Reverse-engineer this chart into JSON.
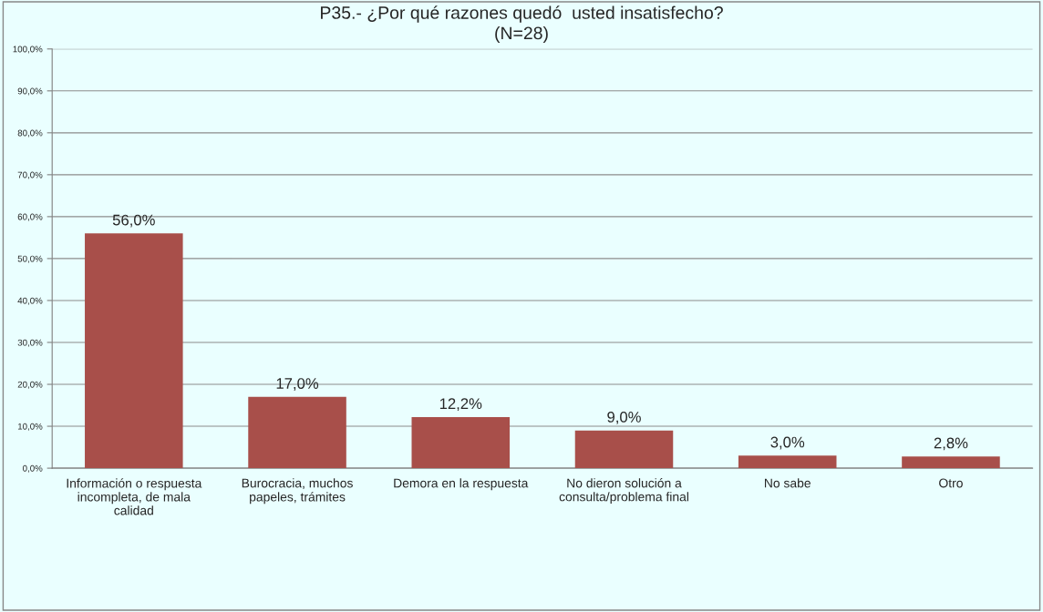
{
  "chart_data": {
    "type": "bar",
    "title": "P35.- ¿Por qué razones quedó  usted insatisfecho?",
    "subtitle": "(N=28)",
    "categories": [
      "Información o respuesta incompleta, de mala calidad",
      "Burocracia, muchos papeles, trámites",
      "Demora en la respuesta",
      "No dieron solución a consulta/problema final",
      "No sabe",
      "Otro"
    ],
    "values": [
      56.0,
      17.0,
      12.2,
      9.0,
      3.0,
      2.8
    ],
    "value_labels": [
      "56,0%",
      "17,0%",
      "12,2%",
      "9,0%",
      "3,0%",
      "2,8%"
    ],
    "color": "#a84f4a",
    "ylim": [
      0,
      100
    ],
    "yticks": [
      {
        "value": 0,
        "label": "0,0%"
      },
      {
        "value": 10,
        "label": "10,0%"
      },
      {
        "value": 20,
        "label": "20,0%"
      },
      {
        "value": 30,
        "label": "30,0%"
      },
      {
        "value": 40,
        "label": "40,0%"
      },
      {
        "value": 50,
        "label": "50,0%"
      },
      {
        "value": 60,
        "label": "60,0%"
      },
      {
        "value": 70,
        "label": "70,0%"
      },
      {
        "value": 80,
        "label": "80,0%"
      },
      {
        "value": 90,
        "label": "90,0%"
      },
      {
        "value": 100,
        "label": "100,0%"
      }
    ],
    "grid": "y",
    "legend": false
  }
}
